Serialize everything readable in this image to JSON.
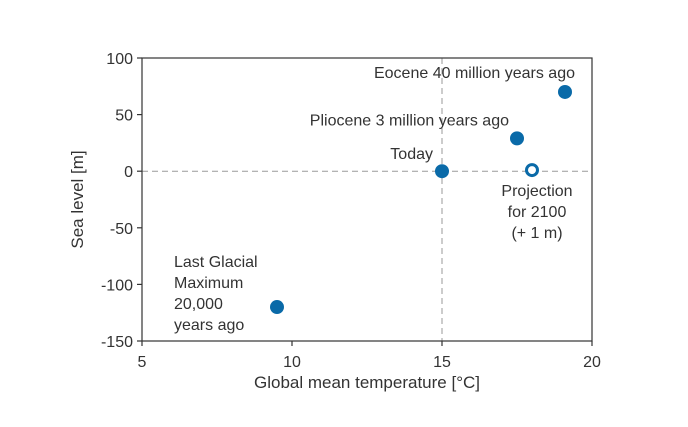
{
  "chart_data": {
    "type": "scatter",
    "xlabel": "Global mean temperature [°C]",
    "ylabel": "Sea level [m]",
    "xlim": [
      5,
      20
    ],
    "ylim": [
      -150,
      100
    ],
    "xticks": [
      5,
      10,
      15,
      20
    ],
    "yticks": [
      100,
      50,
      0,
      -50,
      -100,
      -150
    ],
    "xtick_labels": [
      "5",
      "10",
      "15",
      "20"
    ],
    "ytick_labels": [
      "100",
      "50",
      "0",
      "-50",
      "-100",
      "-150"
    ],
    "grid": false,
    "reference_lines": {
      "x": 15,
      "y": 0,
      "style": "dashed"
    },
    "marker_color": "#0a6aa8",
    "points": [
      {
        "x": 9.5,
        "y": -120,
        "filled": true,
        "label": [
          "Last Glacial",
          "Maximum",
          "20,000",
          "years ago"
        ]
      },
      {
        "x": 15,
        "y": 0,
        "filled": true,
        "label": [
          "Today"
        ]
      },
      {
        "x": 17.5,
        "y": 29,
        "filled": true,
        "label": [
          "Pliocene 3 million years ago"
        ]
      },
      {
        "x": 19.1,
        "y": 70,
        "filled": true,
        "label": [
          "Eocene 40 million years ago"
        ]
      },
      {
        "x": 18.0,
        "y": 1,
        "filled": false,
        "label": [
          "Projection",
          "for 2100",
          "(+ 1 m)"
        ]
      }
    ]
  }
}
